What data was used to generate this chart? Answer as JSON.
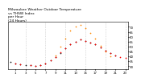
{
  "title": "Milwaukee Weather Outdoor Temperature\nvs THSW Index\nper Hour\n(24 Hours)",
  "title_fontsize": 3.2,
  "background_color": "#ffffff",
  "plot_bg": "#ffffff",
  "outdoor_temp_hours": [
    1,
    2,
    4,
    5,
    6,
    7,
    8,
    9,
    10,
    11,
    12,
    13,
    14,
    15,
    16,
    17,
    18,
    19,
    20,
    21,
    22,
    23
  ],
  "outdoor_temp_vals": [
    33,
    32,
    31,
    30,
    31,
    33,
    36,
    39,
    44,
    48,
    52,
    55,
    57,
    56,
    54,
    52,
    49,
    46,
    43,
    41,
    39,
    38
  ],
  "thsw_hours": [
    9,
    10,
    11,
    12,
    13,
    14,
    15,
    16,
    17,
    18,
    19,
    20
  ],
  "thsw_vals": [
    41,
    50,
    58,
    66,
    70,
    72,
    69,
    64,
    58,
    51,
    45,
    40
  ],
  "black_hours": [
    0,
    1,
    2,
    3,
    4,
    5,
    6,
    7,
    8,
    9,
    10,
    11,
    12,
    13,
    14,
    15,
    16,
    17,
    18,
    19,
    20,
    21
  ],
  "black_vals": [
    34,
    33,
    32,
    31,
    31,
    30,
    31,
    33,
    36,
    39,
    43,
    48,
    52,
    55,
    57,
    56,
    54,
    52,
    49,
    46,
    43,
    41
  ],
  "outdoor_color": "#ff0000",
  "thsw_color": "#ff8800",
  "black_color": "#111111",
  "marker_size": 1.5,
  "ylim": [
    27,
    75
  ],
  "ytick_vals": [
    30,
    35,
    40,
    45,
    50,
    55,
    60,
    65,
    70
  ],
  "ytick_labels": [
    "30",
    "35",
    "40",
    "45",
    "50",
    "55",
    "60",
    "65",
    "70"
  ],
  "xlim": [
    -0.5,
    23.5
  ],
  "xtick_positions": [
    1,
    3,
    5,
    7,
    9,
    11,
    13,
    15,
    17,
    19,
    21,
    23
  ],
  "xtick_labels": [
    "1",
    "3",
    "5",
    "7",
    "9",
    "11",
    "13",
    "15",
    "17",
    "19",
    "21",
    "23"
  ],
  "vgrid_positions": [
    3,
    7,
    11,
    15,
    19,
    23
  ],
  "grid_color": "#aaaaaa",
  "grid_style": ":",
  "grid_alpha": 0.8,
  "grid_lw": 0.5,
  "tick_fontsize": 2.8,
  "spine_lw": 0.4
}
